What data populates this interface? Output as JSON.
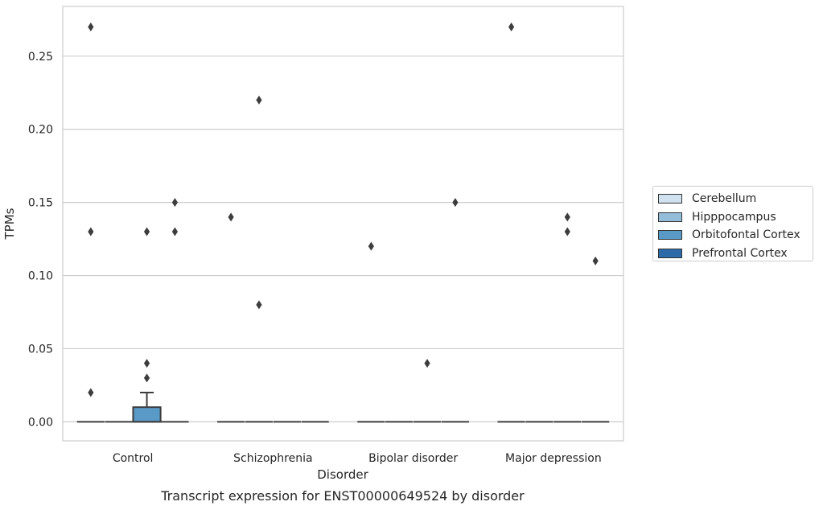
{
  "chart_data": {
    "type": "box",
    "title": "Transcript expression for ENST00000649524 by disorder",
    "xlabel": "Disorder",
    "ylabel": "TPMs",
    "ylim": [
      -0.013,
      0.284
    ],
    "yticks": [
      "0.00",
      "0.05",
      "0.10",
      "0.15",
      "0.20",
      "0.25"
    ],
    "ytick_values": [
      0.0,
      0.05,
      0.1,
      0.15,
      0.2,
      0.25
    ],
    "grid": true,
    "legend_position": "right",
    "categories": [
      "Control",
      "Schizophrenia",
      "Bipolar disorder",
      "Major depression"
    ],
    "hue": [
      {
        "name": "Cerebellum",
        "color": "#d0e1f0"
      },
      {
        "name": "Hipppocampus",
        "color": "#93bdd8"
      },
      {
        "name": "Orbitofontal Cortex",
        "color": "#5a9ac6"
      },
      {
        "name": "Prefrontal Cortex",
        "color": "#2c6aa8"
      }
    ],
    "boxes": [
      {
        "category": "Control",
        "series": "Cerebellum",
        "q1": 0,
        "median": 0,
        "q3": 0,
        "whisker_low": 0,
        "whisker_high": 0,
        "outliers": [
          0.27,
          0.13,
          0.02
        ]
      },
      {
        "category": "Control",
        "series": "Hipppocampus",
        "q1": 0,
        "median": 0,
        "q3": 0,
        "whisker_low": 0,
        "whisker_high": 0,
        "outliers": []
      },
      {
        "category": "Control",
        "series": "Orbitofontal Cortex",
        "q1": 0,
        "median": 0,
        "q3": 0.01,
        "whisker_low": 0,
        "whisker_high": 0.02,
        "outliers": [
          0.13,
          0.04,
          0.03
        ]
      },
      {
        "category": "Control",
        "series": "Prefrontal Cortex",
        "q1": 0,
        "median": 0,
        "q3": 0,
        "whisker_low": 0,
        "whisker_high": 0,
        "outliers": [
          0.15,
          0.13
        ]
      },
      {
        "category": "Schizophrenia",
        "series": "Cerebellum",
        "q1": 0,
        "median": 0,
        "q3": 0,
        "whisker_low": 0,
        "whisker_high": 0,
        "outliers": [
          0.14
        ]
      },
      {
        "category": "Schizophrenia",
        "series": "Hipppocampus",
        "q1": 0,
        "median": 0,
        "q3": 0,
        "whisker_low": 0,
        "whisker_high": 0,
        "outliers": [
          0.22,
          0.08
        ]
      },
      {
        "category": "Schizophrenia",
        "series": "Orbitofontal Cortex",
        "q1": 0,
        "median": 0,
        "q3": 0,
        "whisker_low": 0,
        "whisker_high": 0,
        "outliers": []
      },
      {
        "category": "Schizophrenia",
        "series": "Prefrontal Cortex",
        "q1": 0,
        "median": 0,
        "q3": 0,
        "whisker_low": 0,
        "whisker_high": 0,
        "outliers": []
      },
      {
        "category": "Bipolar disorder",
        "series": "Cerebellum",
        "q1": 0,
        "median": 0,
        "q3": 0,
        "whisker_low": 0,
        "whisker_high": 0,
        "outliers": [
          0.12
        ]
      },
      {
        "category": "Bipolar disorder",
        "series": "Hipppocampus",
        "q1": 0,
        "median": 0,
        "q3": 0,
        "whisker_low": 0,
        "whisker_high": 0,
        "outliers": []
      },
      {
        "category": "Bipolar disorder",
        "series": "Orbitofontal Cortex",
        "q1": 0,
        "median": 0,
        "q3": 0,
        "whisker_low": 0,
        "whisker_high": 0,
        "outliers": [
          0.04
        ]
      },
      {
        "category": "Bipolar disorder",
        "series": "Prefrontal Cortex",
        "q1": 0,
        "median": 0,
        "q3": 0,
        "whisker_low": 0,
        "whisker_high": 0,
        "outliers": [
          0.15
        ]
      },
      {
        "category": "Major depression",
        "series": "Cerebellum",
        "q1": 0,
        "median": 0,
        "q3": 0,
        "whisker_low": 0,
        "whisker_high": 0,
        "outliers": [
          0.27
        ]
      },
      {
        "category": "Major depression",
        "series": "Hipppocampus",
        "q1": 0,
        "median": 0,
        "q3": 0,
        "whisker_low": 0,
        "whisker_high": 0,
        "outliers": []
      },
      {
        "category": "Major depression",
        "series": "Orbitofontal Cortex",
        "q1": 0,
        "median": 0,
        "q3": 0,
        "whisker_low": 0,
        "whisker_high": 0,
        "outliers": [
          0.14,
          0.13
        ]
      },
      {
        "category": "Major depression",
        "series": "Prefrontal Cortex",
        "q1": 0,
        "median": 0,
        "q3": 0,
        "whisker_low": 0,
        "whisker_high": 0,
        "outliers": [
          0.11
        ]
      }
    ]
  }
}
